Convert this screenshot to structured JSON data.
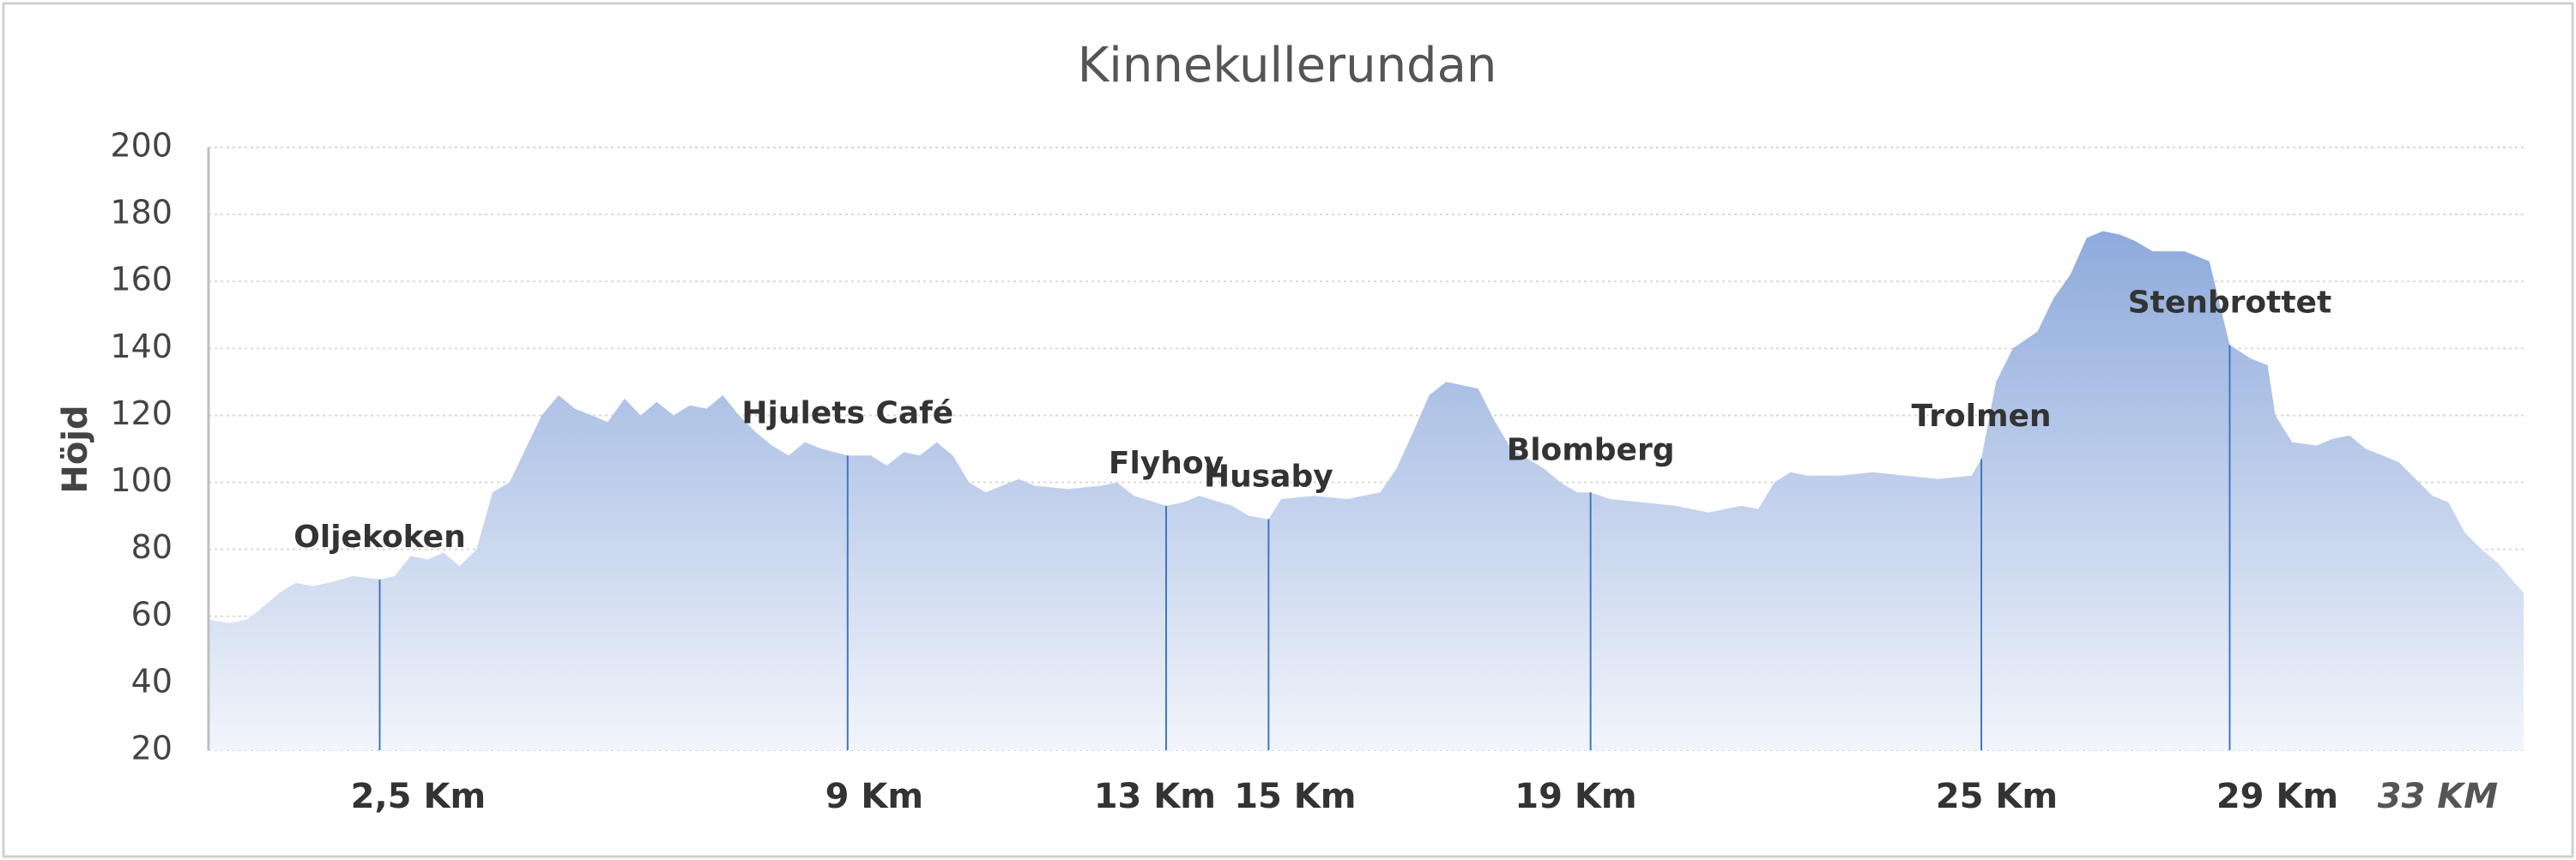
{
  "chart_data": {
    "type": "area",
    "title": "Kinnekullerundan",
    "y_label": "Höjd",
    "x": [
      0,
      0.3,
      0.54,
      0.73,
      1.01,
      1.24,
      1.48,
      1.71,
      2.06,
      2.44,
      2.65,
      2.88,
      3.12,
      3.35,
      3.58,
      3.82,
      4.05,
      4.29,
      4.52,
      4.75,
      4.99,
      5.22,
      5.46,
      5.69,
      5.93,
      6.16,
      6.39,
      6.63,
      6.86,
      7.1,
      7.33,
      7.56,
      7.8,
      8.03,
      8.27,
      8.5,
      8.74,
      9.11,
      9.44,
      9.67,
      9.91,
      10.14,
      10.38,
      10.61,
      10.84,
      11.08,
      11.31,
      11.55,
      11.78,
      12.25,
      12.72,
      12.95,
      13.19,
      13.65,
      13.89,
      14.12,
      14.59,
      14.83,
      15.11,
      15.29,
      15.76,
      16.23,
      16.7,
      16.93,
      17.17,
      17.4,
      17.64,
      17.87,
      18.1,
      18.34,
      18.57,
      18.81,
      19.04,
      19.27,
      19.51,
      19.7,
      19.98,
      20.45,
      20.91,
      21.38,
      21.85,
      22.09,
      22.32,
      22.55,
      22.79,
      23.26,
      23.72,
      24.19,
      24.66,
      25.13,
      25.27,
      25.48,
      25.72,
      26.07,
      26.3,
      26.54,
      26.77,
      27.0,
      27.24,
      27.47,
      27.71,
      28.17,
      28.52,
      28.81,
      29.11,
      29.35,
      29.46,
      29.7,
      30.05,
      30.28,
      30.52,
      30.75,
      30.99,
      31.22,
      31.46,
      31.7,
      31.93,
      32.16,
      32.4,
      32.63,
      32.87,
      33
    ],
    "values": [
      59,
      58,
      59,
      62,
      67,
      70,
      69,
      70,
      72,
      71,
      72,
      78,
      77,
      79,
      75,
      80,
      97,
      100,
      110,
      120,
      126,
      122,
      120,
      118,
      125,
      120,
      124,
      120,
      123,
      122,
      126,
      120,
      115,
      111,
      108,
      112,
      110,
      108,
      108,
      105,
      109,
      108,
      112,
      108,
      100,
      97,
      99,
      101,
      99,
      98,
      99,
      100,
      96,
      93,
      94,
      96,
      93,
      90,
      89,
      95,
      96,
      95,
      97,
      104,
      115,
      126,
      130,
      129,
      128,
      118,
      110,
      107,
      104,
      100,
      97,
      97,
      95,
      94,
      93,
      91,
      93,
      92,
      100,
      103,
      102,
      102,
      103,
      102,
      101,
      102,
      107,
      130,
      140,
      145,
      155,
      162,
      173,
      175,
      174,
      172,
      169,
      169,
      166,
      141,
      137,
      135,
      120,
      112,
      111,
      113,
      114,
      110,
      108,
      106,
      101,
      96,
      94,
      85,
      80,
      76,
      70,
      67
    ],
    "color_top": "#8eaadc",
    "color_bottom": "#f2f5fb",
    "xlim": [
      0,
      33
    ],
    "ylim": [
      20,
      200
    ],
    "yticks": [
      20,
      40,
      60,
      80,
      100,
      120,
      140,
      160,
      180,
      200
    ],
    "xticks": [
      {
        "value": 2.5,
        "label": "2,5 Km"
      },
      {
        "value": 9,
        "label": "9 Km"
      },
      {
        "value": 13,
        "label": "13 Km"
      },
      {
        "value": 15,
        "label": "15 Km"
      },
      {
        "value": 19,
        "label": "19 Km"
      },
      {
        "value": 25,
        "label": "25 Km"
      },
      {
        "value": 29,
        "label": "29 Km"
      },
      {
        "value": 33,
        "label": "33 KM"
      }
    ],
    "grid": true,
    "annotations": [
      {
        "label": "Oljekoken",
        "x": 2.44,
        "y": 71
      },
      {
        "label": "Hjulets Café",
        "x": 9.11,
        "y": 108
      },
      {
        "label": "Flyhov",
        "x": 13.65,
        "y": 93
      },
      {
        "label": "Husaby",
        "x": 15.11,
        "y": 89
      },
      {
        "label": "Blomberg",
        "x": 19.7,
        "y": 97
      },
      {
        "label": "Trolmen",
        "x": 25.27,
        "y": 107
      },
      {
        "label": "Stenbrottet",
        "x": 28.81,
        "y": 141
      }
    ]
  }
}
